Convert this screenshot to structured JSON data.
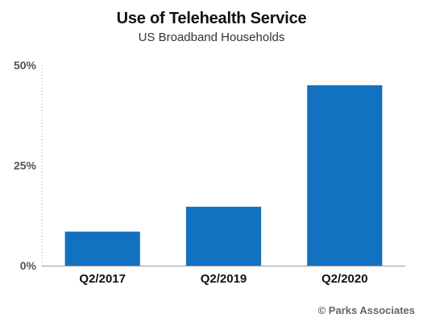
{
  "chart_data": {
    "type": "bar",
    "title": "Use of Telehealth Service",
    "subtitle": "US Broadband Households",
    "categories": [
      "Q2/2017",
      "Q2/2019",
      "Q2/2020"
    ],
    "values": [
      8.5,
      14.7,
      45
    ],
    "yticks": [
      0,
      25,
      50
    ],
    "ytick_labels": [
      "0%",
      "25%",
      "50%"
    ],
    "ylim": [
      0,
      50
    ],
    "xlabel": "",
    "ylabel": "",
    "grid": false,
    "bar_color": "#1372c0",
    "source": "© Parks Associates"
  }
}
